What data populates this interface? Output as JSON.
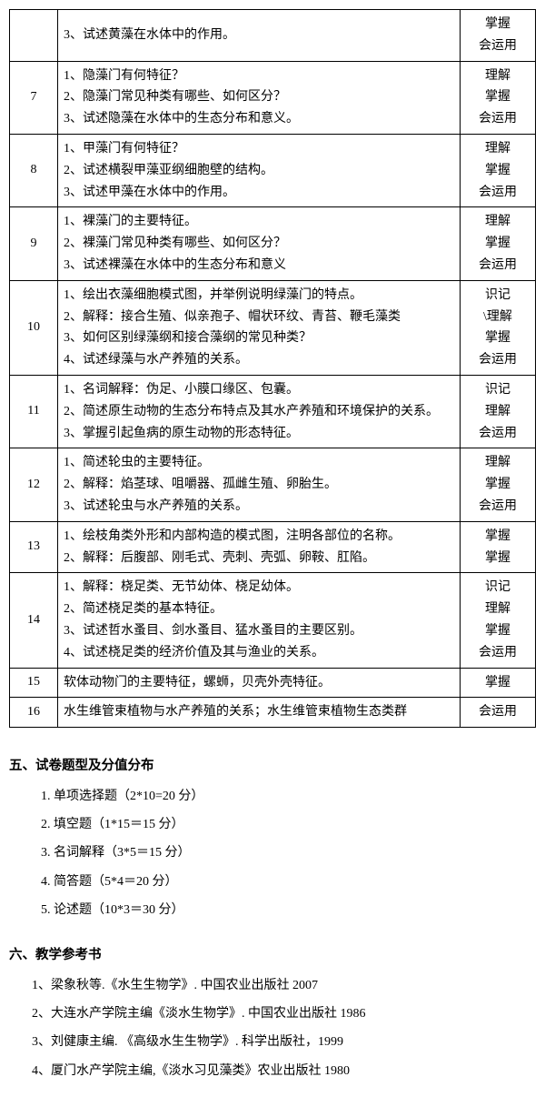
{
  "table": {
    "rows": [
      {
        "num": "",
        "content": "3、试述黄藻在水体中的作用。",
        "level": "掌握<br>会运用"
      },
      {
        "num": "7",
        "content": "1、隐藻门有何特征？<br>2、隐藻门常见种类有哪些、如何区分？<br>3、试述隐藻在水体中的生态分布和意义。",
        "level": "理解<br>掌握<br>会运用"
      },
      {
        "num": "8",
        "content": "1、甲藻门有何特征？<br>2、试述横裂甲藻亚纲细胞壁的结构。<br>3、试述甲藻在水体中的作用。",
        "level": "理解<br>掌握<br>会运用"
      },
      {
        "num": "9",
        "content": "1、裸藻门的主要特征。<br>2、裸藻门常见种类有哪些、如何区分？<br>3、试述裸藻在水体中的生态分布和意义",
        "level": "理解<br>掌握<br>会运用"
      },
      {
        "num": "10",
        "content": "1、绘出衣藻细胞模式图，并举例说明绿藻门的特点。<br>2、解释：接合生殖、似亲孢子、帽状环纹、青苔、鞭毛藻类<br>3、如何区别绿藻纲和接合藻纲的常见种类？<br>4、试述绿藻与水产养殖的关系。",
        "level": "识记<br>\\理解<br>掌握<br>会运用"
      },
      {
        "num": "11",
        "content": "1、名词解释：伪足、小膜口缘区、包囊。<br>2、简述原生动物的生态分布特点及其水产养殖和环境保护的关系。<br>3、掌握引起鱼病的原生动物的形态特征。",
        "level": "识记<br>理解<br>会运用"
      },
      {
        "num": "12",
        "content": "1、简述轮虫的主要特征。<br>2、解释：焰茎球、咀嚼器、孤雌生殖、卵胎生。<br>3、试述轮虫与水产养殖的关系。",
        "level": "理解<br>掌握<br>会运用"
      },
      {
        "num": "13",
        "content": "1、绘枝角类外形和内部构造的模式图，注明各部位的名称。<br>2、解释：后腹部、刚毛式、壳刺、壳弧、卵鞍、肛陷。",
        "level": "掌握<br>掌握"
      },
      {
        "num": "14",
        "content": "1、解释：桡足类、无节幼体、桡足幼体。<br>2、简述桡足类的基本特征。<br>3、试述哲水蚤目、剑水蚤目、猛水蚤目的主要区别。<br>4、试述桡足类的经济价值及其与渔业的关系。",
        "level": "识记<br>理解<br>掌握<br>会运用"
      },
      {
        "num": "15",
        "content": "软体动物门的主要特征，螺蛳，贝壳外壳特征。",
        "level": "掌握"
      },
      {
        "num": "16",
        "content": "水生维管束植物与水产养殖的关系；水生维管束植物生态类群",
        "level": "会运用"
      }
    ]
  },
  "section5": {
    "heading": "五、试卷题型及分值分布",
    "items": [
      "1. 单项选择题（2*10=20 分）",
      "2. 填空题（1*15＝15 分）",
      "3. 名词解释（3*5＝15 分）",
      "4. 简答题（5*4＝20 分）",
      "5. 论述题（10*3＝30 分）"
    ]
  },
  "section6": {
    "heading": "六、教学参考书",
    "refs": [
      "1、梁象秋等.《水生生物学》. 中国农业出版社  2007",
      "2、大连水产学院主编《淡水生物学》. 中国农业出版社  1986",
      "3、刘健康主编. 《高级水生生物学》. 科学出版社，1999",
      "4、厦门水产学院主编,《淡水习见藻类》农业出版社  1980"
    ]
  }
}
